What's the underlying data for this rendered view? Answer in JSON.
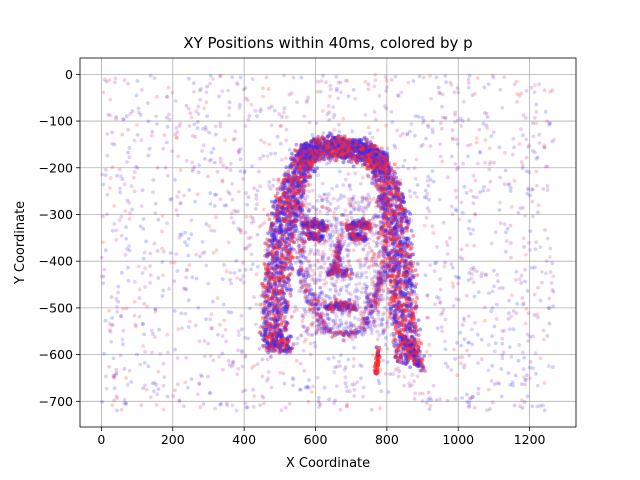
{
  "chart_data": {
    "type": "scatter",
    "title": "XY Positions within 40ms, colored by p",
    "xlabel": "X Coordinate",
    "ylabel": "Y Coordinate",
    "xlim": [
      -60,
      1330
    ],
    "ylim": [
      -755,
      35
    ],
    "xticks": [
      0,
      200,
      400,
      600,
      800,
      1000,
      1200
    ],
    "yticks": [
      0,
      -100,
      -200,
      -300,
      -400,
      -500,
      -600,
      -700
    ],
    "grid": true,
    "legend": "none",
    "point_count_background": 1700,
    "point_count_face": 5200,
    "colors": {
      "p_true": "#ff2a2a",
      "p_false": "#2a2aff",
      "mixed": "#a02aa0"
    },
    "series": [
      {
        "values_description_ref": "hair_left",
        "points": [
          [
            560,
            -160
          ],
          [
            530,
            -200
          ],
          [
            500,
            -260
          ],
          [
            480,
            -320
          ],
          [
            470,
            -400
          ],
          [
            460,
            -480
          ],
          [
            460,
            -560
          ],
          [
            470,
            -590
          ]
        ]
      },
      {
        "values_description_ref": "hair_right",
        "points": [
          [
            720,
            -150
          ],
          [
            790,
            -170
          ],
          [
            830,
            -230
          ],
          [
            850,
            -300
          ],
          [
            860,
            -380
          ],
          [
            870,
            -460
          ],
          [
            880,
            -540
          ],
          [
            890,
            -620
          ]
        ]
      },
      {
        "values_description_ref": "hair_top",
        "points": [
          [
            560,
            -160
          ],
          [
            600,
            -145
          ],
          [
            650,
            -140
          ],
          [
            700,
            -145
          ],
          [
            750,
            -155
          ],
          [
            800,
            -180
          ]
        ]
      },
      {
        "values_description_ref": "face_features",
        "points": [
          [
            600,
            -340
          ],
          [
            720,
            -335
          ],
          [
            650,
            -420
          ],
          [
            690,
            -420
          ],
          [
            670,
            -500
          ],
          [
            640,
            -530
          ],
          [
            700,
            -530
          ]
        ]
      },
      {
        "values_description_ref": "background",
        "points": [
          [
            0,
            0
          ],
          [
            1280,
            -720
          ]
        ]
      }
    ]
  }
}
